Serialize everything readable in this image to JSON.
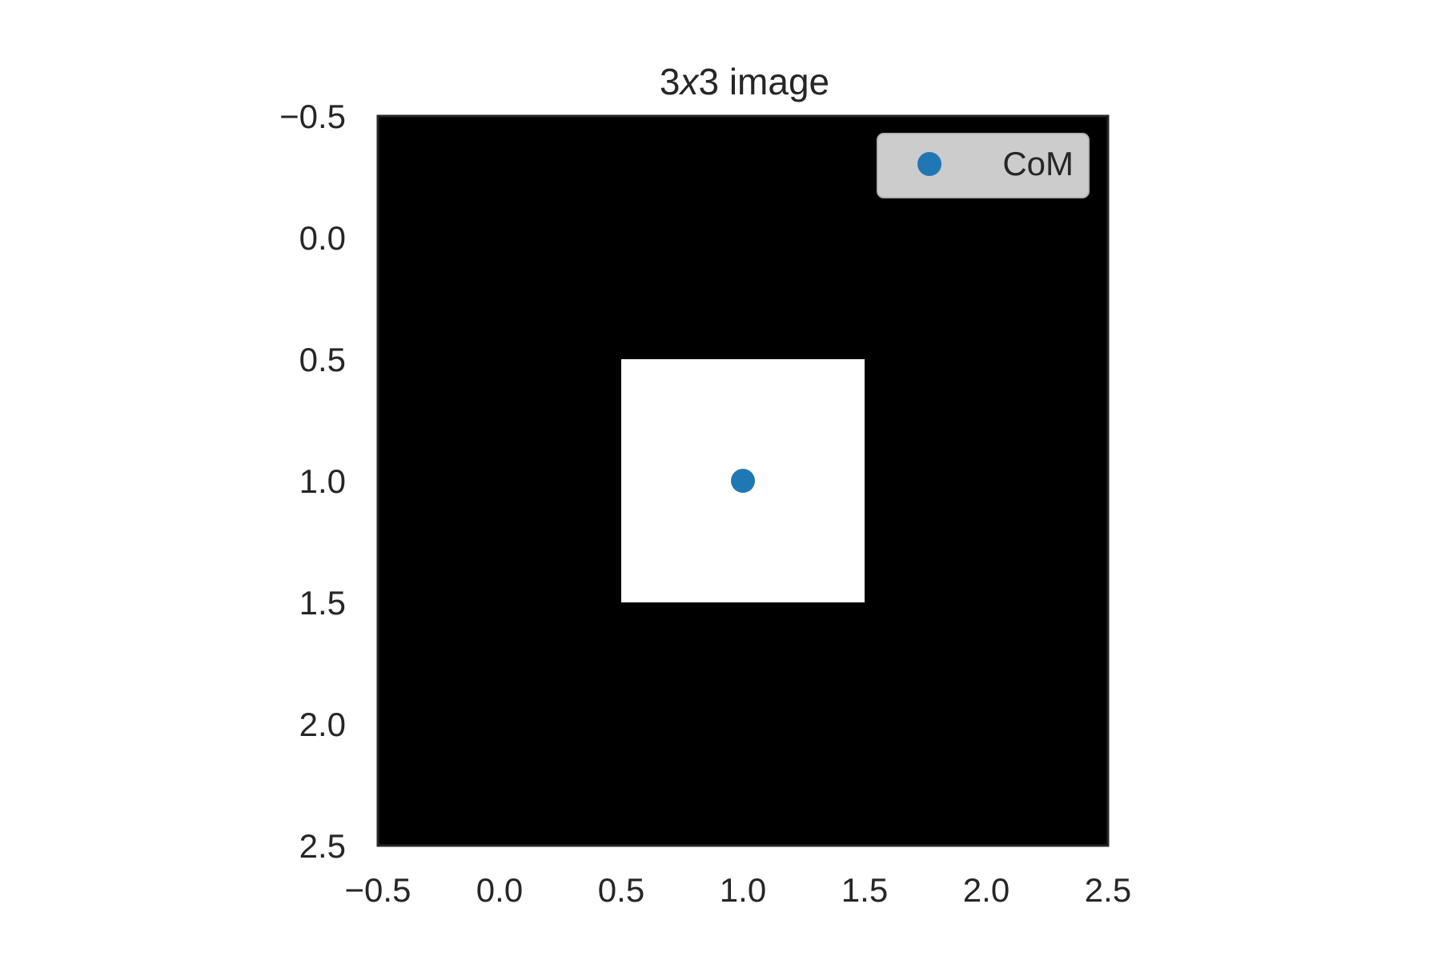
{
  "chart_data": {
    "type": "heatmap",
    "title": {
      "pre": "3",
      "italic": "x",
      "post": "3 image"
    },
    "xlim": [
      -0.5,
      2.5
    ],
    "ylim": [
      2.5,
      -0.5
    ],
    "x_ticks": [
      "−0.5",
      "0.0",
      "0.5",
      "1.0",
      "1.5",
      "2.0",
      "2.5"
    ],
    "y_ticks": [
      "−0.5",
      "0.0",
      "0.5",
      "1.0",
      "1.5",
      "2.0",
      "2.5"
    ],
    "x_tick_values": [
      -0.5,
      0.0,
      0.5,
      1.0,
      1.5,
      2.0,
      2.5
    ],
    "y_tick_values": [
      -0.5,
      0.0,
      0.5,
      1.0,
      1.5,
      2.0,
      2.5
    ],
    "image": [
      [
        0,
        0,
        0
      ],
      [
        0,
        1,
        0
      ],
      [
        0,
        0,
        0
      ]
    ],
    "colormap": [
      "#000000",
      "#ffffff"
    ],
    "series": [
      {
        "name": "CoM",
        "type": "scatter",
        "x": [
          1.0
        ],
        "y": [
          1.0
        ],
        "color": "#1f77b4"
      }
    ],
    "legend": {
      "position": "upper-right",
      "background": "#cccccc"
    },
    "grid": false
  }
}
